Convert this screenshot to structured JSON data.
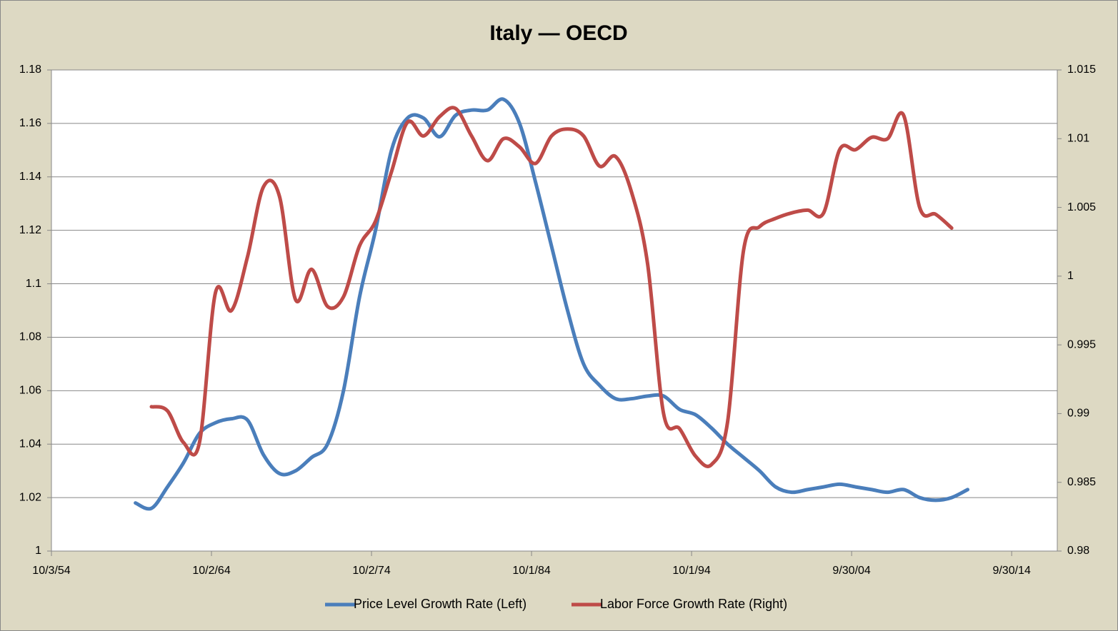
{
  "chart_data": {
    "type": "line",
    "title": "Italy — OECD",
    "x": [
      1960,
      1961,
      1962,
      1963,
      1964,
      1965,
      1966,
      1967,
      1968,
      1969,
      1970,
      1971,
      1972,
      1973,
      1974,
      1975,
      1976,
      1977,
      1978,
      1979,
      1980,
      1981,
      1982,
      1983,
      1984,
      1985,
      1986,
      1987,
      1988,
      1989,
      1990,
      1991,
      1992,
      1993,
      1994,
      1995,
      1996,
      1997,
      1998,
      1999,
      2000,
      2001,
      2002,
      2003,
      2004,
      2005,
      2006,
      2007,
      2008,
      2009,
      2010,
      2011,
      2012
    ],
    "xlim": [
      1954.75,
      2017.6
    ],
    "xticks": [
      {
        "value": 1954.75,
        "label": "10/3/54"
      },
      {
        "value": 1964.75,
        "label": "10/2/64"
      },
      {
        "value": 1974.75,
        "label": "10/2/74"
      },
      {
        "value": 1984.75,
        "label": "10/1/84"
      },
      {
        "value": 1994.75,
        "label": "10/1/94"
      },
      {
        "value": 2004.75,
        "label": "9/30/04"
      },
      {
        "value": 2014.75,
        "label": "9/30/14"
      }
    ],
    "ylim": [
      1,
      1.18
    ],
    "yticks": [
      1,
      1.02,
      1.04,
      1.06,
      1.08,
      1.1,
      1.12,
      1.14,
      1.16,
      1.18
    ],
    "y2lim": [
      0.98,
      1.015
    ],
    "y2ticks": [
      0.98,
      0.985,
      0.99,
      0.995,
      1,
      1.005,
      1.01,
      1.015
    ],
    "grid": true,
    "legend": "bottom",
    "series": [
      {
        "name": "Price Level Growth Rate (Left)",
        "color": "#4a7ebb",
        "axis": "y",
        "values": [
          1.018,
          1.016,
          1.024,
          1.033,
          1.044,
          1.048,
          1.0495,
          1.049,
          1.036,
          1.029,
          1.03,
          1.035,
          1.04,
          1.06,
          1.095,
          1.12,
          1.15,
          1.162,
          1.162,
          1.155,
          1.163,
          1.165,
          1.165,
          1.169,
          1.16,
          1.138,
          1.114,
          1.09,
          1.07,
          1.062,
          1.057,
          1.057,
          1.058,
          1.058,
          1.053,
          1.051,
          1.046,
          1.04,
          1.035,
          1.03,
          1.024,
          1.022,
          1.023,
          1.024,
          1.025,
          1.024,
          1.023,
          1.022,
          1.023,
          1.02,
          1.019,
          1.02,
          1.023
        ]
      },
      {
        "name": "Labor Force Growth Rate (Right)",
        "color": "#be4b48",
        "axis": "y2",
        "values": [
          null,
          0.9905,
          0.9902,
          0.9879,
          0.9879,
          0.9988,
          0.9975,
          1.0014,
          1.0065,
          1.0058,
          0.9983,
          1.0005,
          0.9978,
          0.9985,
          1.0022,
          1.004,
          1.0076,
          1.0112,
          1.0102,
          1.0116,
          1.0122,
          1.0102,
          1.0084,
          1.01,
          1.0094,
          1.0082,
          1.0102,
          1.0107,
          1.0102,
          1.008,
          1.0087,
          1.0061,
          1.0009,
          0.99,
          0.9889,
          0.9869,
          0.9863,
          0.9894,
          1.0019,
          1.0036,
          1.0042,
          1.0046,
          1.0048,
          1.0046,
          1.0092,
          1.0092,
          1.0101,
          1.01,
          1.0117,
          1.005,
          1.0045,
          1.0035,
          null
        ]
      }
    ]
  }
}
